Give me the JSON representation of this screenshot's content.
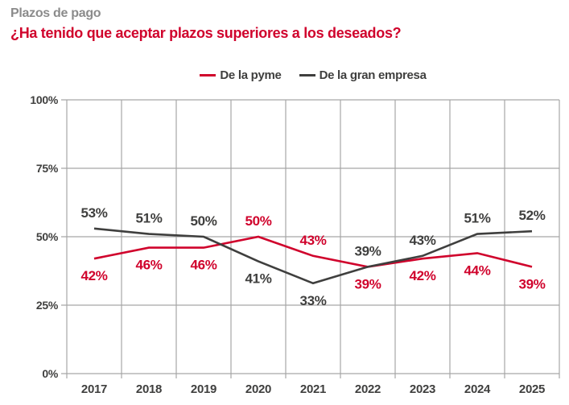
{
  "header": {
    "kicker": "Plazos de pago",
    "title": "¿Ha tenido que aceptar plazos superiores a los deseados?"
  },
  "chart_data": {
    "type": "line",
    "title": "Plazos de pago — ¿Ha tenido que aceptar plazos superiores a los deseados?",
    "x": [
      "2017",
      "2018",
      "2019",
      "2020",
      "2021",
      "2022",
      "2023",
      "2024",
      "2025"
    ],
    "series": [
      {
        "name": "De la pyme",
        "color": "#d0032c",
        "values": [
          42,
          46,
          46,
          50,
          43,
          39,
          42,
          44,
          39
        ],
        "label_positions": [
          "below",
          "below",
          "below",
          "above",
          "above",
          "below",
          "below",
          "below",
          "below"
        ]
      },
      {
        "name": "De la gran empresa",
        "color": "#3f3f3e",
        "values": [
          53,
          51,
          50,
          41,
          33,
          39,
          43,
          51,
          52
        ],
        "label_positions": [
          "above",
          "above",
          "above",
          "below",
          "below",
          "above",
          "above",
          "above",
          "above"
        ]
      }
    ],
    "ylim": [
      0,
      100
    ],
    "yticks": [
      0,
      25,
      50,
      75,
      100
    ],
    "ytick_suffix": "%",
    "value_label_suffix": "%",
    "grid": true,
    "legend_position": "top-center"
  },
  "colors": {
    "kicker": "#8b8b8b",
    "headline": "#d0032c",
    "grid": "#a6a6a6",
    "tick_label": "#3f3f3e",
    "background": "#ffffff"
  }
}
